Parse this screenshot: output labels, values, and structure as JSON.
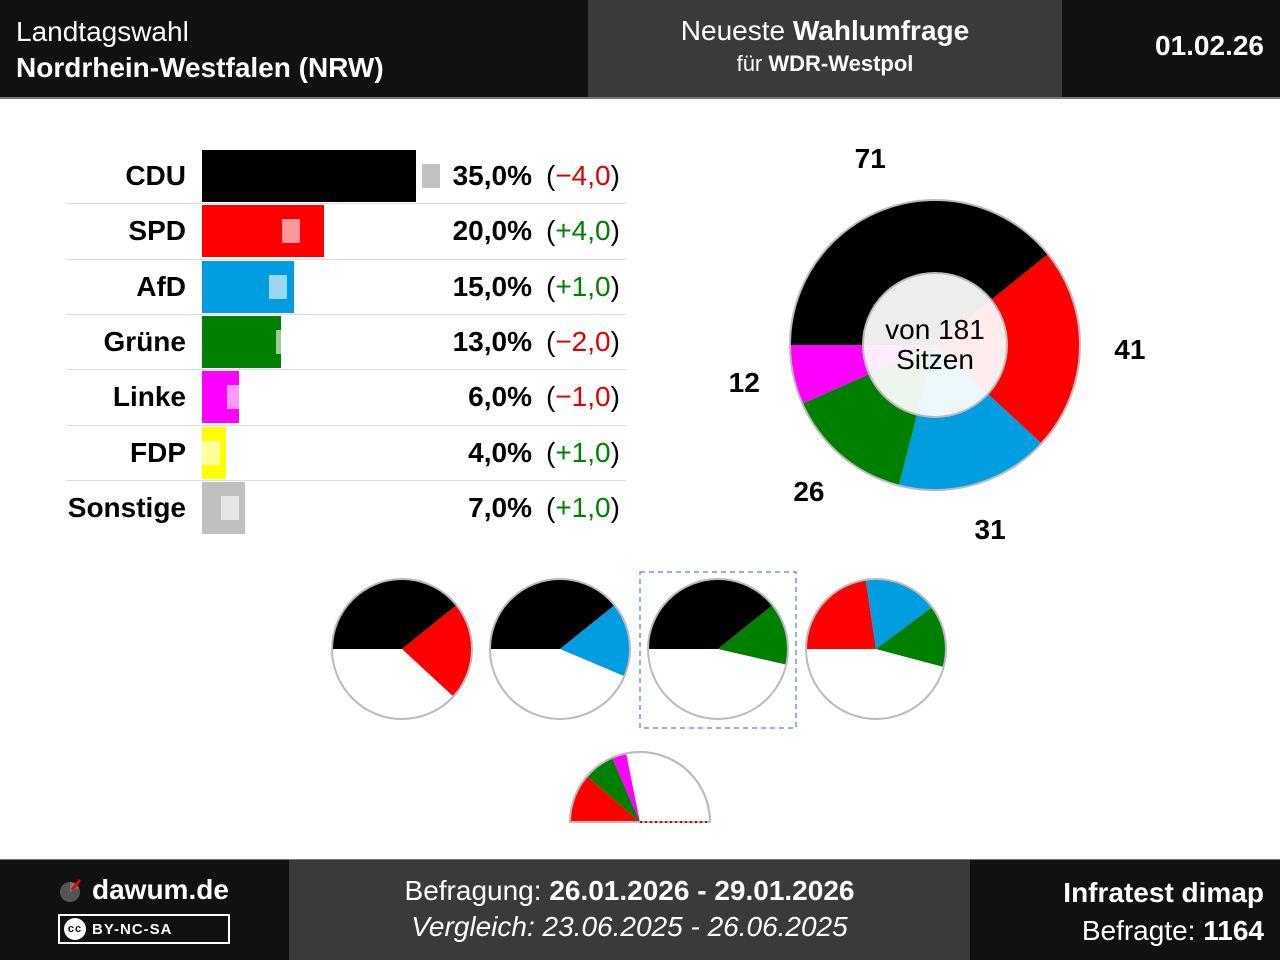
{
  "header": {
    "title_line1": "Landtagswahl",
    "title_line2": "Nordrhein-Westfalen (NRW)",
    "poll_prefix": "Neueste",
    "poll_bold": "Wahlumfrage",
    "client_prefix": "für",
    "client_bold": "WDR-Westpol",
    "date": "01.02.26"
  },
  "colors": {
    "CDU": "#000000",
    "SPD": "#ff0000",
    "AfD": "#009ee0",
    "Grüne": "#008000",
    "Linke": "#ff00ff",
    "FDP": "#ffff00",
    "Sonstige": "#c0c0c0",
    "positive_diff": "#008000",
    "negative_diff": "#e00000",
    "header_bg": "#111111",
    "header_mid_bg": "#3a3a3a"
  },
  "chart_data": [
    {
      "type": "bar",
      "categories": [
        "CDU",
        "SPD",
        "AfD",
        "Grüne",
        "Linke",
        "FDP",
        "Sonstige"
      ],
      "values": [
        35.0,
        20.0,
        15.0,
        13.0,
        6.0,
        4.0,
        7.0
      ],
      "previous": [
        39.0,
        16.0,
        14.0,
        15.0,
        7.0,
        3.0,
        6.0
      ],
      "value_labels": [
        "35,0%",
        "20,0%",
        "15,0%",
        "13,0%",
        "6,0%",
        "4,0%",
        "7,0%"
      ],
      "diff_labels": [
        "−4,0",
        "+4,0",
        "+1,0",
        "−2,0",
        "−1,0",
        "+1,0",
        "+1,0"
      ],
      "diff_signs": [
        "neg",
        "pos",
        "pos",
        "neg",
        "neg",
        "pos",
        "pos"
      ]
    },
    {
      "type": "pie",
      "subtype": "donut",
      "center_label_line1": "von 181",
      "center_label_line2": "Sitzen",
      "total": 181,
      "slices": [
        {
          "party": "CDU",
          "seats": 71,
          "label": "71"
        },
        {
          "party": "SPD",
          "seats": 41,
          "label": "41"
        },
        {
          "party": "AfD",
          "seats": 31,
          "label": "31"
        },
        {
          "party": "Grüne",
          "seats": 26,
          "label": "26"
        },
        {
          "party": "Linke",
          "seats": 12,
          "label": "12"
        }
      ]
    },
    {
      "type": "pie",
      "subtype": "coalition-options",
      "coalitions": [
        {
          "parties": [
            "CDU",
            "SPD"
          ],
          "seats": [
            71,
            41
          ],
          "highlighted": false
        },
        {
          "parties": [
            "CDU",
            "AfD"
          ],
          "seats": [
            71,
            31
          ],
          "highlighted": false
        },
        {
          "parties": [
            "CDU",
            "Grüne"
          ],
          "seats": [
            71,
            26
          ],
          "highlighted": true
        },
        {
          "parties": [
            "SPD",
            "AfD",
            "Grüne"
          ],
          "seats": [
            41,
            31,
            26
          ],
          "highlighted": false
        }
      ],
      "extra": {
        "parties": [
          "SPD",
          "Grüne",
          "Linke"
        ],
        "seats": [
          41,
          26,
          12
        ]
      }
    }
  ],
  "footer": {
    "brand": "dawum.de",
    "license": "BY-NC-SA",
    "survey_label": "Befragung:",
    "survey_period": "26.01.2026 - 29.01.2026",
    "comparison_label": "Vergleich:",
    "comparison_period": "23.06.2025 - 26.06.2025",
    "institute": "Infratest dimap",
    "respondents_label": "Befragte:",
    "respondents_value": "1164"
  }
}
